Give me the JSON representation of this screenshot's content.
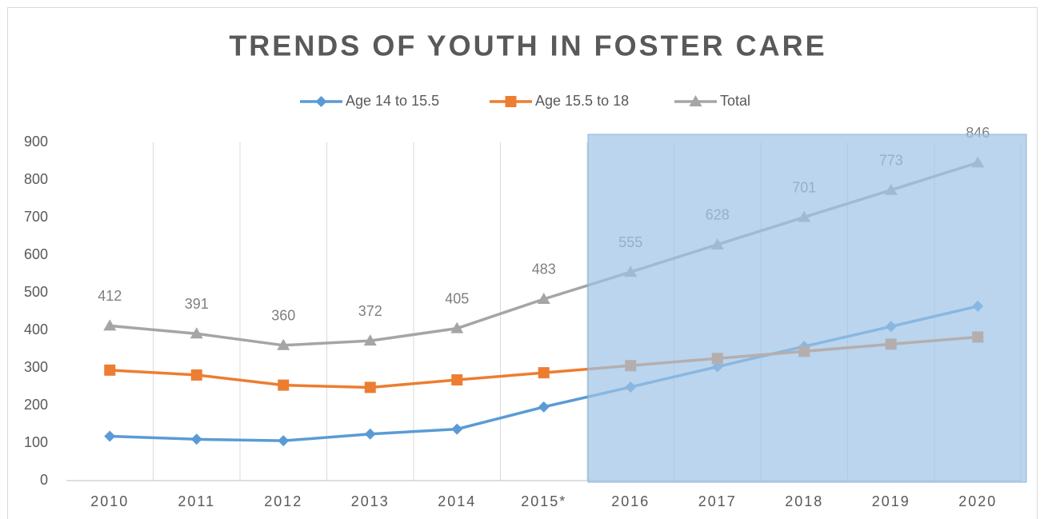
{
  "chart_data": {
    "type": "line",
    "title": "TRENDS OF YOUTH IN FOSTER CARE",
    "categories": [
      "2010",
      "2011",
      "2012",
      "2013",
      "2014",
      "2015*",
      "2016",
      "2017",
      "2018",
      "2019",
      "2020"
    ],
    "series": [
      {
        "name": "Age 14 to 15.5",
        "color": "#5b9bd5",
        "marker": "diamond",
        "values": [
          118,
          110,
          106,
          124,
          137,
          196,
          249,
          303,
          357,
          410,
          464
        ]
      },
      {
        "name": "Age 15.5 to 18",
        "color": "#ed7d31",
        "marker": "square",
        "values": [
          294,
          281,
          254,
          248,
          268,
          287,
          306,
          325,
          344,
          363,
          382
        ]
      },
      {
        "name": "Total",
        "color": "#a5a5a5",
        "marker": "triangle",
        "data_labels": true,
        "values": [
          412,
          391,
          360,
          372,
          405,
          483,
          555,
          628,
          701,
          773,
          846
        ]
      }
    ],
    "ylim": [
      0,
      900
    ],
    "yticks": [
      0,
      100,
      200,
      300,
      400,
      500,
      600,
      700,
      800,
      900
    ],
    "grid": true,
    "legend": "top"
  }
}
